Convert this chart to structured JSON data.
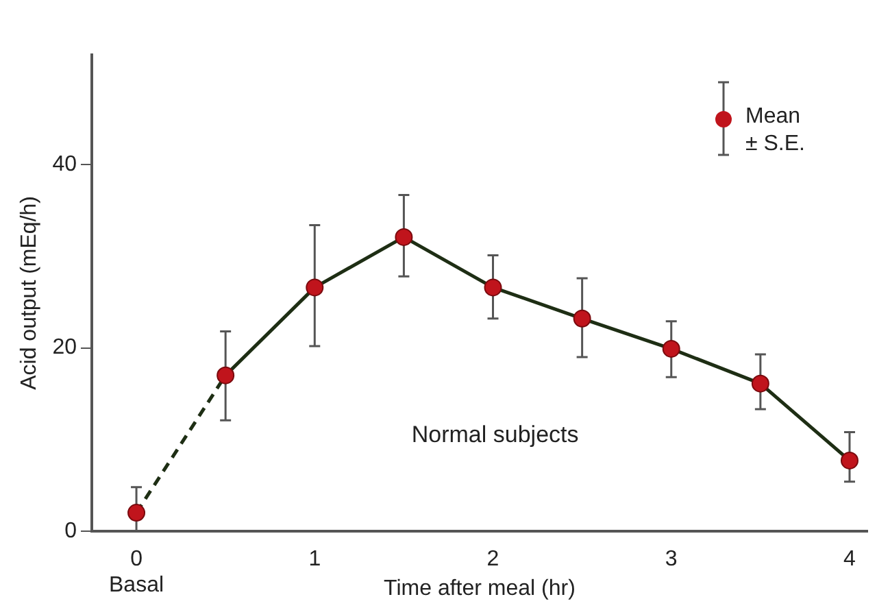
{
  "chart_data": {
    "type": "line",
    "xlabel": "Time after meal (hr)",
    "ylabel": "Acid output (mEq/h)",
    "xlim": [
      -0.25,
      4.1
    ],
    "xticks": [
      {
        "value": 0,
        "label": "0\nBasal"
      },
      1,
      2,
      3,
      4
    ],
    "ylim": [
      0,
      52
    ],
    "yticks": [
      0,
      20,
      40
    ],
    "grid": false,
    "legend": "top right",
    "annotations": [
      "Normal subjects"
    ],
    "series": [
      {
        "color": "#1e2e14",
        "line_style": "dashed",
        "marker": "none",
        "x": [
          0,
          0.5
        ],
        "values": [
          2,
          17
        ]
      },
      {
        "color": "#1e2e14",
        "line_style": "solid",
        "marker": "none",
        "x": [
          0.5,
          1,
          1.5,
          2,
          2.5,
          3,
          3.5,
          4
        ],
        "values": [
          17,
          26.6,
          32.1,
          26.6,
          23.2,
          19.9,
          16.1,
          7.7
        ]
      },
      {
        "type": "scatter",
        "name": "Mean ± S.E.",
        "color": "#c0141c",
        "marker": "circle",
        "x": [
          0,
          0.5,
          1,
          1.5,
          2,
          2.5,
          3,
          3.5,
          4
        ],
        "values": [
          2,
          17,
          26.6,
          32.1,
          26.6,
          23.2,
          19.9,
          16.1,
          7.7
        ],
        "errors": [
          [
            0,
            4.8
          ],
          [
            12.1,
            21.8
          ],
          [
            20.2,
            33.4
          ],
          [
            27.8,
            36.7
          ],
          [
            23.2,
            30.1
          ],
          [
            19,
            27.6
          ],
          [
            16.8,
            22.9
          ],
          [
            13.3,
            19.3
          ],
          [
            5.4,
            10.8
          ]
        ]
      }
    ]
  }
}
